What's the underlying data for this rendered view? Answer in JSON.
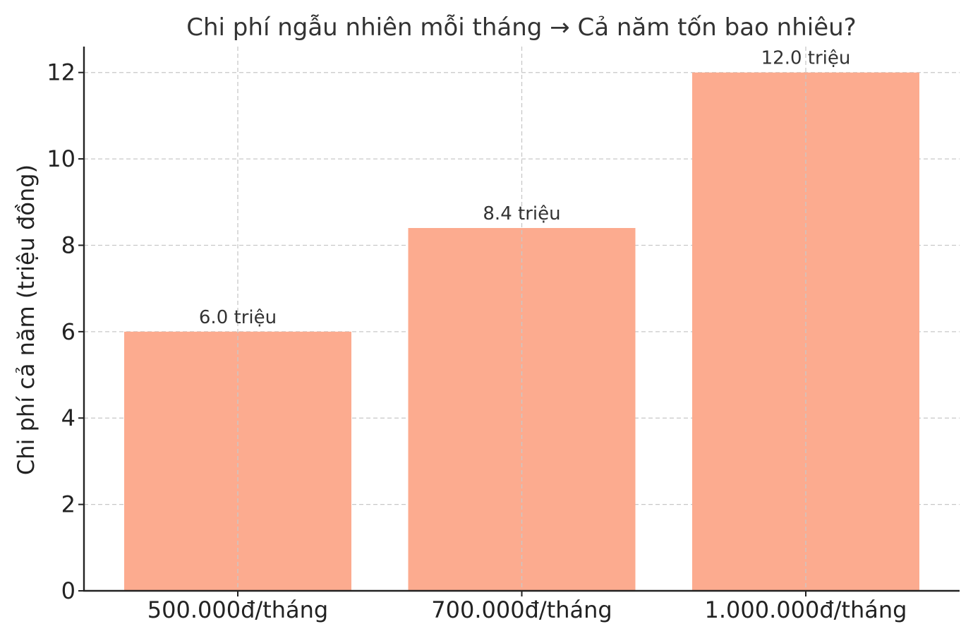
{
  "chart_data": {
    "type": "bar",
    "title": "Chi phí ngẫu nhiên mỗi tháng → Cả năm tốn bao nhiêu?",
    "xlabel": "",
    "ylabel": "Chi phí cả năm (triệu đồng)",
    "categories": [
      "500.000đ/tháng",
      "700.000đ/tháng",
      "1.000.000đ/tháng"
    ],
    "values": [
      6.0,
      8.4,
      12.0
    ],
    "data_labels": [
      "6.0 triệu",
      "8.4 triệu",
      "12.0 triệu"
    ],
    "ylim": [
      0,
      12.6
    ],
    "yticks": [
      0,
      2,
      4,
      6,
      8,
      10,
      12
    ],
    "grid": true,
    "bar_color": "#fcab8f"
  }
}
